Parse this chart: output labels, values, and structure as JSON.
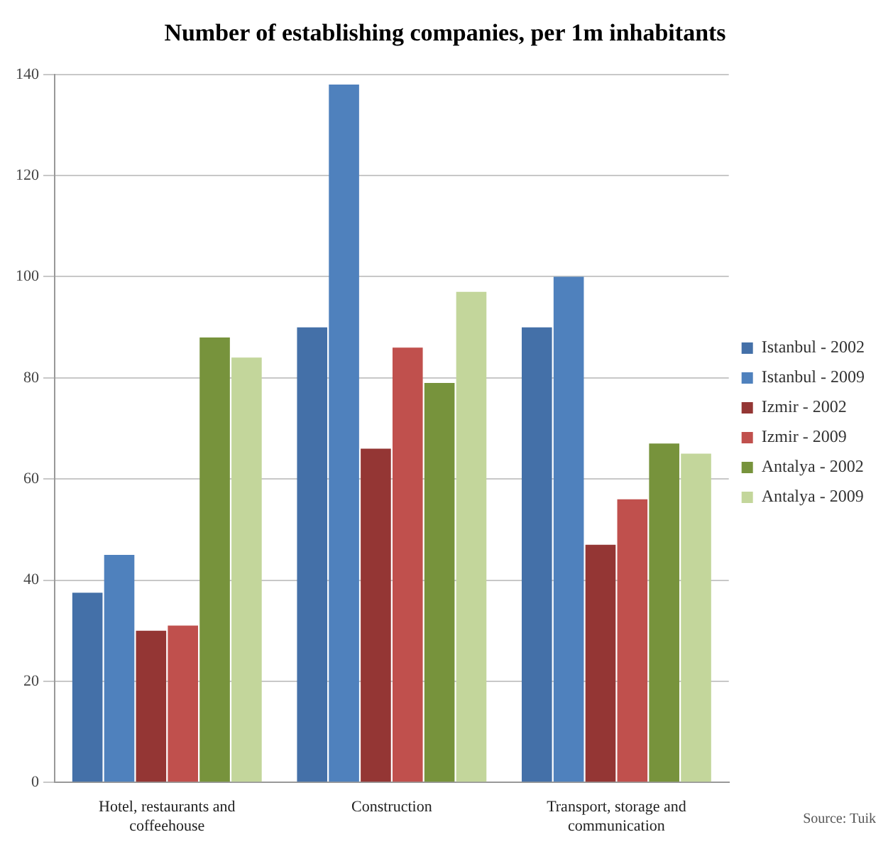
{
  "chart_data": {
    "type": "bar",
    "title": "Number of establishing companies, per 1m inhabitants",
    "categories": [
      "Hotel, restaurants and coffeehouse",
      "Construction",
      "Transport, storage and communication"
    ],
    "series": [
      {
        "name": "Istanbul - 2002",
        "color": "#4470a8",
        "values": [
          37.5,
          90,
          90
        ]
      },
      {
        "name": "Istanbul - 2009",
        "color": "#4f81bd",
        "values": [
          45,
          138,
          100
        ]
      },
      {
        "name": "Izmir - 2002",
        "color": "#943634",
        "values": [
          30,
          66,
          47
        ]
      },
      {
        "name": "Izmir - 2009",
        "color": "#c0504d",
        "values": [
          31,
          86,
          56
        ]
      },
      {
        "name": "Antalya - 2002",
        "color": "#77933c",
        "values": [
          88,
          79,
          67
        ]
      },
      {
        "name": "Antalya - 2009",
        "color": "#c3d69b",
        "values": [
          84,
          97,
          65
        ]
      }
    ],
    "ylim": [
      0,
      140
    ],
    "yticks": [
      0,
      20,
      40,
      60,
      80,
      100,
      120,
      140
    ],
    "grid": "y",
    "legend": "right",
    "annotations": [
      "Source: Tuik"
    ]
  }
}
